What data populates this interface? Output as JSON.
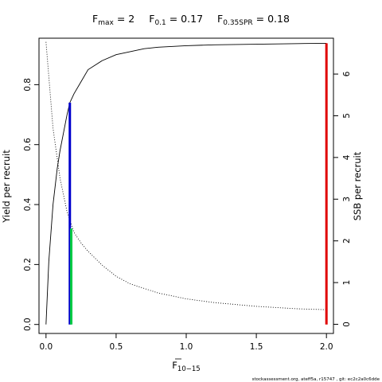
{
  "chart_data": {
    "type": "line",
    "title": {
      "fmax_label": "F",
      "fmax_sub": "max",
      "fmax_eq": " = 2",
      "f01_label": "F",
      "f01_sub": "0.1",
      "f01_eq": " = 0.17",
      "fspr_label": "F",
      "fspr_sub": "0.35SPR",
      "fspr_eq": " = 0.18"
    },
    "xlabel": {
      "main": "F",
      "sub": "10−15"
    },
    "ylabel_left": "Yield per recruit",
    "ylabel_right": "SSB per recruit",
    "xlim": [
      -0.05,
      2.05
    ],
    "ylim_left": [
      -0.03,
      0.955
    ],
    "ylim_right": [
      -0.22,
      6.86
    ],
    "x_ticks": [
      {
        "v": 0,
        "label": "0.0"
      },
      {
        "v": 0.5,
        "label": "0.5"
      },
      {
        "v": 1,
        "label": "1.0"
      },
      {
        "v": 1.5,
        "label": "1.5"
      },
      {
        "v": 2,
        "label": "2.0"
      }
    ],
    "y_left_ticks": [
      {
        "v": 0,
        "label": "0.0"
      },
      {
        "v": 0.2,
        "label": "0.2"
      },
      {
        "v": 0.4,
        "label": "0.4"
      },
      {
        "v": 0.6,
        "label": "0.6"
      },
      {
        "v": 0.8,
        "label": "0.8"
      }
    ],
    "y_right_ticks": [
      {
        "v": 0,
        "label": "0"
      },
      {
        "v": 1,
        "label": "1"
      },
      {
        "v": 2,
        "label": "2"
      },
      {
        "v": 3,
        "label": "3"
      },
      {
        "v": 4,
        "label": "4"
      },
      {
        "v": 5,
        "label": "5"
      },
      {
        "v": 6,
        "label": "6"
      }
    ],
    "series": [
      {
        "style": "solid",
        "axis": "left",
        "x": [
          0,
          0.02,
          0.05,
          0.08,
          0.1,
          0.15,
          0.17,
          0.2,
          0.25,
          0.3,
          0.4,
          0.5,
          0.6,
          0.7,
          0.8,
          1.0,
          1.2,
          1.5,
          1.8,
          2.0
        ],
        "values": [
          0,
          0.21,
          0.4,
          0.52,
          0.58,
          0.7,
          0.74,
          0.77,
          0.81,
          0.85,
          0.88,
          0.9,
          0.91,
          0.92,
          0.925,
          0.93,
          0.933,
          0.935,
          0.937,
          0.938
        ]
      },
      {
        "style": "dotted",
        "axis": "right",
        "x": [
          0,
          0.05,
          0.1,
          0.15,
          0.17,
          0.2,
          0.25,
          0.3,
          0.4,
          0.5,
          0.6,
          0.8,
          1.0,
          1.2,
          1.5,
          1.8,
          2.0
        ],
        "values": [
          6.77,
          4.7,
          3.5,
          2.7,
          2.5,
          2.2,
          1.95,
          1.75,
          1.42,
          1.15,
          0.97,
          0.75,
          0.61,
          0.52,
          0.43,
          0.37,
          0.35
        ]
      }
    ],
    "reference_lines": [
      {
        "x": 2.0,
        "top": 0.938,
        "color": "#e00000"
      },
      {
        "x": 0.17,
        "top": 0.74,
        "color": "#0000cc"
      },
      {
        "x": 0.18,
        "top": 0.32,
        "color": "#00cc44"
      }
    ],
    "grid": false
  },
  "footer": "stockassessment.org, ateff5a, r15747 , git: ec2c2a0c6dde"
}
